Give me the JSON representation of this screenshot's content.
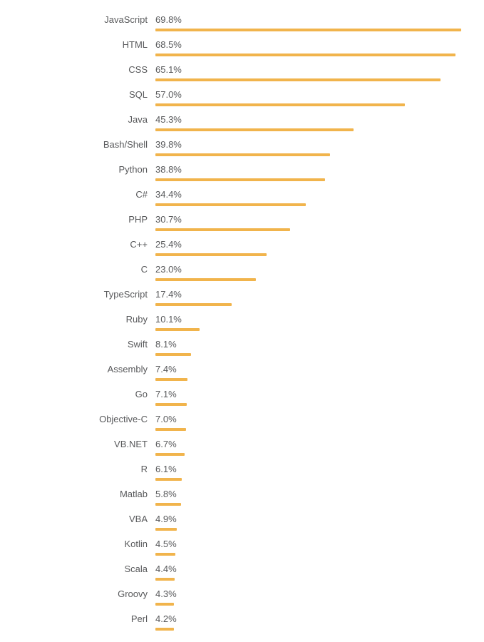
{
  "chart": {
    "title": "",
    "bar_color": "#f1b44c",
    "label_color": "#58595b",
    "background_color": "#ffffff"
  },
  "chart_data": {
    "type": "bar",
    "orientation": "horizontal",
    "title": "",
    "xlabel": "",
    "ylabel": "",
    "grid": false,
    "legend": false,
    "value_suffix": "%",
    "xlim": [
      0,
      69.8
    ],
    "categories": [
      "JavaScript",
      "HTML",
      "CSS",
      "SQL",
      "Java",
      "Bash/Shell",
      "Python",
      "C#",
      "PHP",
      "C++",
      "C",
      "TypeScript",
      "Ruby",
      "Swift",
      "Assembly",
      "Go",
      "Objective-C",
      "VB.NET",
      "R",
      "Matlab",
      "VBA",
      "Kotlin",
      "Scala",
      "Groovy",
      "Perl"
    ],
    "values": [
      69.8,
      68.5,
      65.1,
      57.0,
      45.3,
      39.8,
      38.8,
      34.4,
      30.7,
      25.4,
      23.0,
      17.4,
      10.1,
      8.1,
      7.4,
      7.1,
      7.0,
      6.7,
      6.1,
      5.8,
      4.9,
      4.5,
      4.4,
      4.3,
      4.2
    ]
  }
}
